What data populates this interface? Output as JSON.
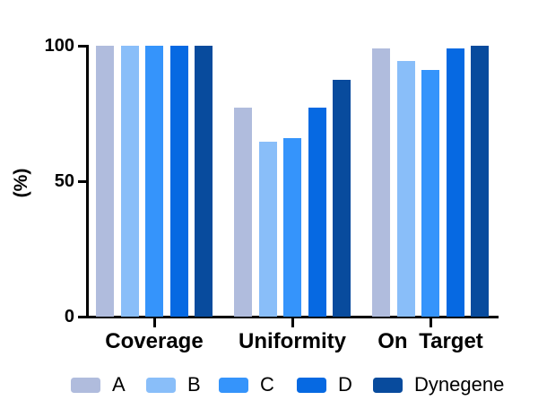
{
  "chart_data": {
    "type": "bar",
    "title": "",
    "ylabel": "(%)",
    "xlabel": "",
    "ylim": [
      0,
      100
    ],
    "yticks": [
      0,
      50,
      100
    ],
    "grid": false,
    "legend_position": "bottom",
    "axis_color": "#000000",
    "text_color": "#000000",
    "categories": [
      "Coverage",
      "Uniformity",
      "On Target"
    ],
    "series": [
      {
        "name": "A",
        "color": "#b0bcdd",
        "values": [
          100,
          77,
          99
        ]
      },
      {
        "name": "B",
        "color": "#89bef9",
        "values": [
          100,
          64.5,
          94.5
        ]
      },
      {
        "name": "C",
        "color": "#3594fb",
        "values": [
          100,
          66,
          91
        ]
      },
      {
        "name": "D",
        "color": "#0669e2",
        "values": [
          100,
          77,
          99
        ]
      },
      {
        "name": "Dynegene",
        "color": "#084b9d",
        "values": [
          100,
          87.5,
          100
        ]
      }
    ]
  }
}
